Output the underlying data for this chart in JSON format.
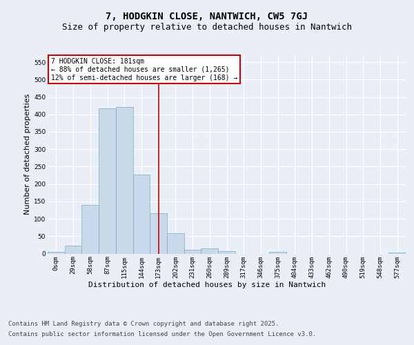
{
  "title_line1": "7, HODGKIN CLOSE, NANTWICH, CW5 7GJ",
  "title_line2": "Size of property relative to detached houses in Nantwich",
  "xlabel": "Distribution of detached houses by size in Nantwich",
  "ylabel": "Number of detached properties",
  "bar_color": "#c9d9ea",
  "bar_edge_color": "#7aaac8",
  "vline_color": "#cc0000",
  "vline_x": 6,
  "annotation_box_text": "7 HODGKIN CLOSE: 181sqm\n← 88% of detached houses are smaller (1,265)\n12% of semi-detached houses are larger (168) →",
  "annotation_box_color": "#cc0000",
  "annotation_bg": "#ffffff",
  "bin_labels": [
    "0sqm",
    "29sqm",
    "58sqm",
    "87sqm",
    "115sqm",
    "144sqm",
    "173sqm",
    "202sqm",
    "231sqm",
    "260sqm",
    "289sqm",
    "317sqm",
    "346sqm",
    "375sqm",
    "404sqm",
    "433sqm",
    "462sqm",
    "490sqm",
    "519sqm",
    "548sqm",
    "577sqm"
  ],
  "bar_values": [
    4,
    22,
    140,
    418,
    422,
    228,
    115,
    59,
    10,
    14,
    7,
    0,
    0,
    4,
    0,
    0,
    0,
    0,
    0,
    0,
    3
  ],
  "ylim": [
    0,
    570
  ],
  "yticks": [
    0,
    50,
    100,
    150,
    200,
    250,
    300,
    350,
    400,
    450,
    500,
    550
  ],
  "footer_line1": "Contains HM Land Registry data © Crown copyright and database right 2025.",
  "footer_line2": "Contains public sector information licensed under the Open Government Licence v3.0.",
  "bg_color": "#eaeff7",
  "plot_bg_color": "#eaeff7",
  "grid_color": "#ffffff",
  "title_fontsize": 10,
  "subtitle_fontsize": 9,
  "axis_label_fontsize": 8,
  "tick_fontsize": 6.5,
  "annotation_fontsize": 7,
  "footer_fontsize": 6.5
}
